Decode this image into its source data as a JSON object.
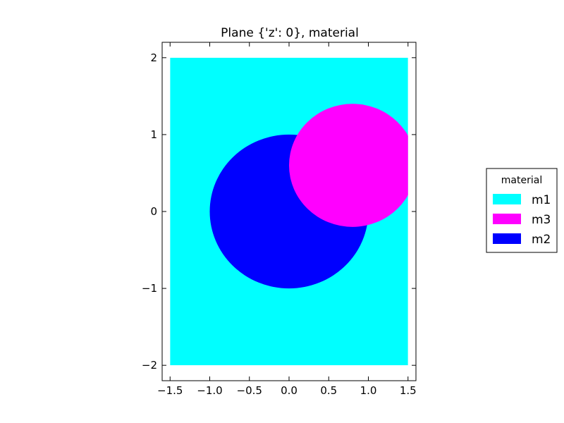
{
  "chart_data": {
    "type": "heatmap",
    "title": "Plane {'z': 0}, material",
    "xlabel": "",
    "ylabel": "",
    "xlim": [
      -1.6,
      1.6
    ],
    "ylim": [
      -2.2,
      2.2
    ],
    "x_ticks": [
      -1.5,
      -1.0,
      -0.5,
      0.0,
      0.5,
      1.0,
      1.5
    ],
    "x_tick_labels": [
      "−1.5",
      "−1.0",
      "−0.5",
      "0.0",
      "0.5",
      "1.0",
      "1.5"
    ],
    "y_ticks": [
      2,
      1,
      0,
      -1,
      -2
    ],
    "y_tick_labels": [
      "2",
      "1",
      "0",
      "−1",
      "−2"
    ],
    "grid": false,
    "regions": [
      {
        "material": "m1",
        "shape": "rectangle",
        "xmin": -1.5,
        "xmax": 1.5,
        "ymin": -2.0,
        "ymax": 2.0,
        "color": "#00ffff"
      },
      {
        "material": "m2",
        "shape": "circle",
        "cx": 0.0,
        "cy": 0.0,
        "r": 1.0,
        "color": "#0000ff"
      },
      {
        "material": "m3",
        "shape": "circle",
        "cx": 0.8,
        "cy": 0.6,
        "r": 0.8,
        "color": "#ff00ff"
      }
    ],
    "legend": {
      "title": "material",
      "placement": "right",
      "entries": [
        {
          "label": "m1",
          "color": "#00ffff"
        },
        {
          "label": "m3",
          "color": "#ff00ff"
        },
        {
          "label": "m2",
          "color": "#0000ff"
        }
      ]
    }
  }
}
